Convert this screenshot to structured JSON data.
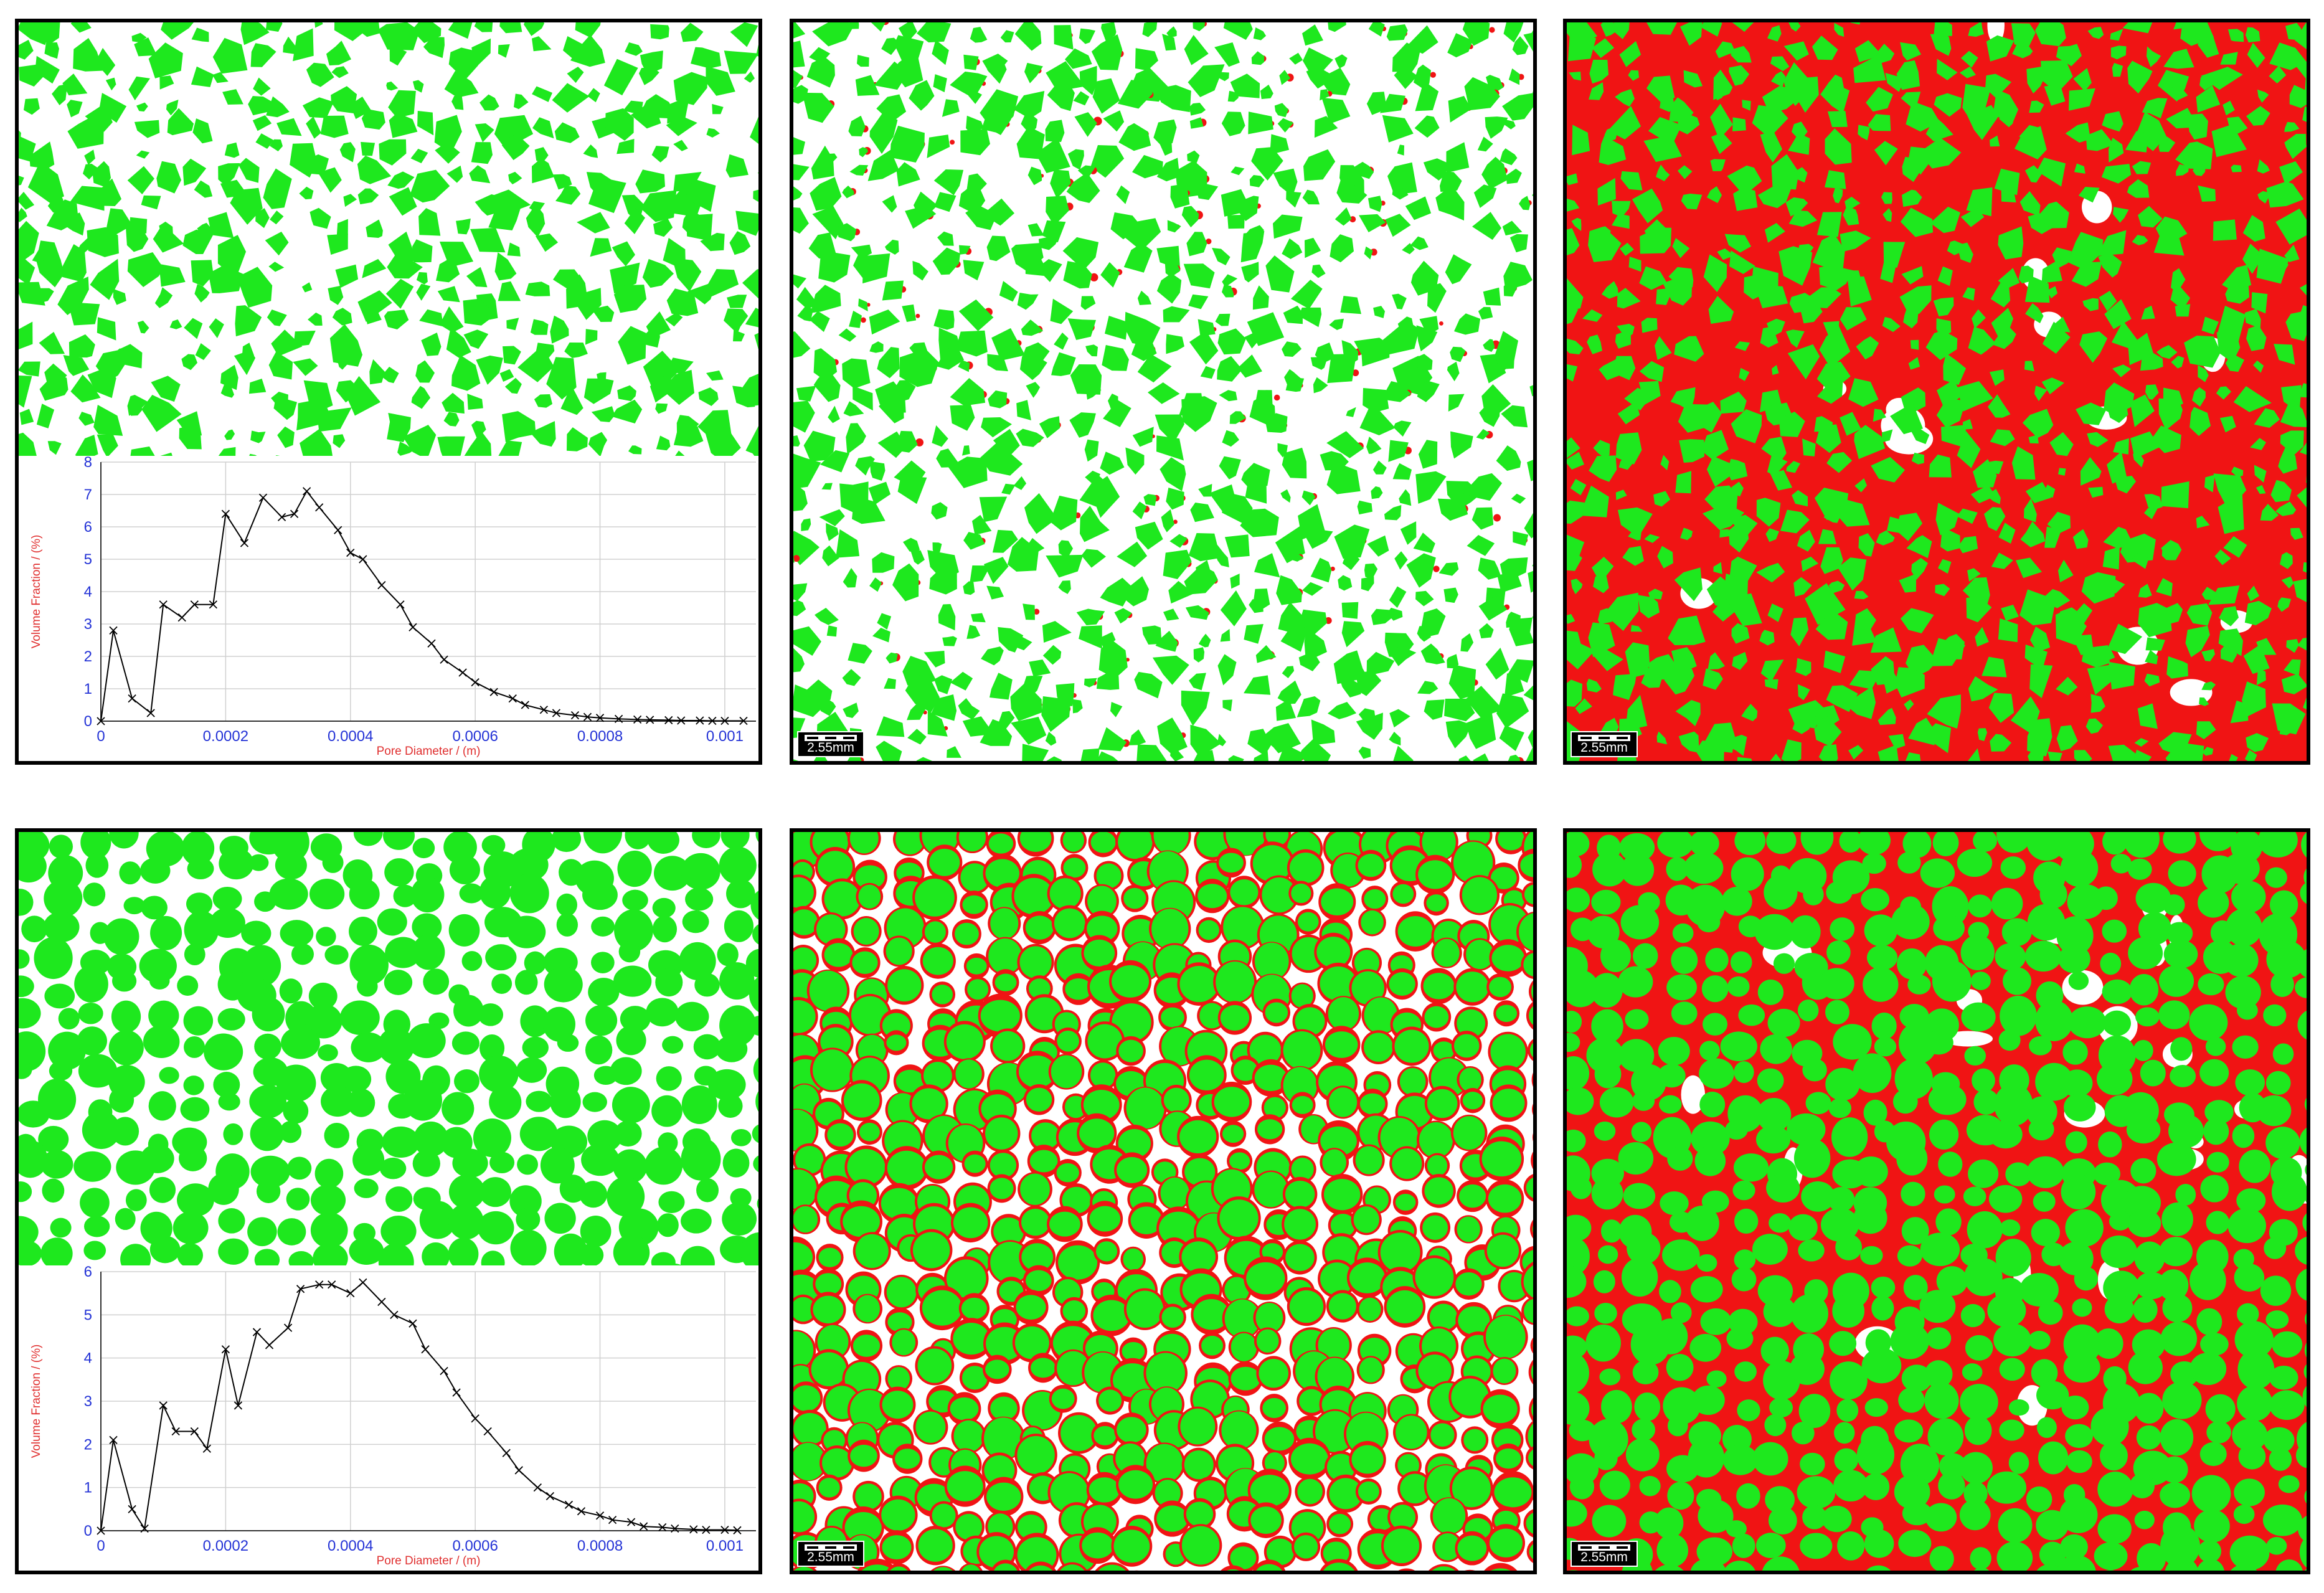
{
  "colors": {
    "grain": "#1ee81e",
    "pore_fill": "#f01414",
    "background": "#ffffff",
    "curve": "#000000",
    "tick_label": "#2433d6",
    "axis_title": "#e03030"
  },
  "scale_bar_label": "2.55mm",
  "rows": [
    {
      "grain_shape": "angular",
      "panels": [
        {
          "kind": "grains",
          "red_amount": 0.0
        },
        {
          "kind": "grains",
          "red_amount": 0.05
        },
        {
          "kind": "grains",
          "red_amount": 0.9
        }
      ]
    },
    {
      "grain_shape": "rounded",
      "panels": [
        {
          "kind": "grains",
          "red_amount": 0.0
        },
        {
          "kind": "grains",
          "red_amount": 0.3
        },
        {
          "kind": "grains",
          "red_amount": 0.9
        }
      ]
    }
  ],
  "chart_data": [
    {
      "type": "line",
      "xlabel": "Pore Diameter / (m)",
      "ylabel": "Volume Fraction / (%)",
      "xlim": [
        0,
        0.00105
      ],
      "ylim": [
        0,
        8
      ],
      "xticks": [
        0,
        0.0002,
        0.0004,
        0.0006,
        0.0008,
        0.001
      ],
      "xtick_labels": [
        "0",
        "0.0002",
        "0.0004",
        "0.0006",
        "0.0008",
        "0.001"
      ],
      "yticks": [
        0,
        1,
        2,
        3,
        4,
        5,
        6,
        7,
        8
      ],
      "ytick_labels": [
        "0",
        "1",
        "2",
        "3",
        "4",
        "5",
        "6",
        "7",
        "8"
      ],
      "grid": true,
      "series": [
        {
          "x": [
            0,
            2e-05,
            5e-05,
            8e-05,
            0.0001,
            0.00013,
            0.00015,
            0.00018,
            0.0002,
            0.00023,
            0.00026,
            0.00029,
            0.00031,
            0.00033,
            0.00035,
            0.00038,
            0.0004,
            0.00042,
            0.00045,
            0.00048,
            0.0005,
            0.00053,
            0.00055,
            0.00058,
            0.0006,
            0.00063,
            0.00066,
            0.00068,
            0.00071,
            0.00073,
            0.00076,
            0.00078,
            0.0008,
            0.00083,
            0.00086,
            0.00088,
            0.00091,
            0.00093,
            0.00096,
            0.00098,
            0.001,
            0.00103
          ],
          "y": [
            0,
            2.8,
            0.7,
            0.25,
            3.6,
            3.2,
            3.6,
            3.6,
            6.4,
            5.5,
            6.9,
            6.3,
            6.4,
            7.1,
            6.6,
            5.9,
            5.2,
            5.0,
            4.2,
            3.6,
            2.9,
            2.4,
            1.9,
            1.5,
            1.2,
            0.9,
            0.7,
            0.5,
            0.35,
            0.25,
            0.18,
            0.13,
            0.1,
            0.07,
            0.05,
            0.04,
            0.03,
            0.02,
            0.02,
            0.01,
            0.01,
            0.01
          ]
        }
      ]
    },
    {
      "type": "line",
      "xlabel": "Pore Diameter / (m)",
      "ylabel": "Volume Fraction / (%)",
      "xlim": [
        0,
        0.00105
      ],
      "ylim": [
        0,
        6
      ],
      "xticks": [
        0,
        0.0002,
        0.0004,
        0.0006,
        0.0008,
        0.001
      ],
      "xtick_labels": [
        "0",
        "0.0002",
        "0.0004",
        "0.0006",
        "0.0008",
        "0.001"
      ],
      "yticks": [
        0,
        1,
        2,
        3,
        4,
        5,
        6
      ],
      "ytick_labels": [
        "0",
        "1",
        "2",
        "3",
        "4",
        "5",
        "6"
      ],
      "grid": true,
      "series": [
        {
          "x": [
            0,
            2e-05,
            5e-05,
            7e-05,
            0.0001,
            0.00012,
            0.00015,
            0.00017,
            0.0002,
            0.00022,
            0.00025,
            0.00027,
            0.0003,
            0.00032,
            0.00035,
            0.00037,
            0.0004,
            0.00042,
            0.00045,
            0.00047,
            0.0005,
            0.00052,
            0.00055,
            0.00057,
            0.0006,
            0.00062,
            0.00065,
            0.00067,
            0.0007,
            0.00072,
            0.00075,
            0.00077,
            0.0008,
            0.00082,
            0.00085,
            0.00087,
            0.0009,
            0.00092,
            0.00095,
            0.00097,
            0.001,
            0.00102
          ],
          "y": [
            0,
            2.1,
            0.5,
            0.05,
            2.9,
            2.3,
            2.3,
            1.9,
            4.2,
            2.9,
            4.6,
            4.3,
            4.7,
            5.6,
            5.7,
            5.7,
            5.5,
            5.75,
            5.3,
            5.0,
            4.8,
            4.2,
            3.7,
            3.2,
            2.6,
            2.3,
            1.8,
            1.4,
            1.0,
            0.8,
            0.6,
            0.45,
            0.35,
            0.25,
            0.2,
            0.1,
            0.08,
            0.05,
            0.03,
            0.02,
            0.02,
            0.01
          ]
        }
      ]
    }
  ]
}
